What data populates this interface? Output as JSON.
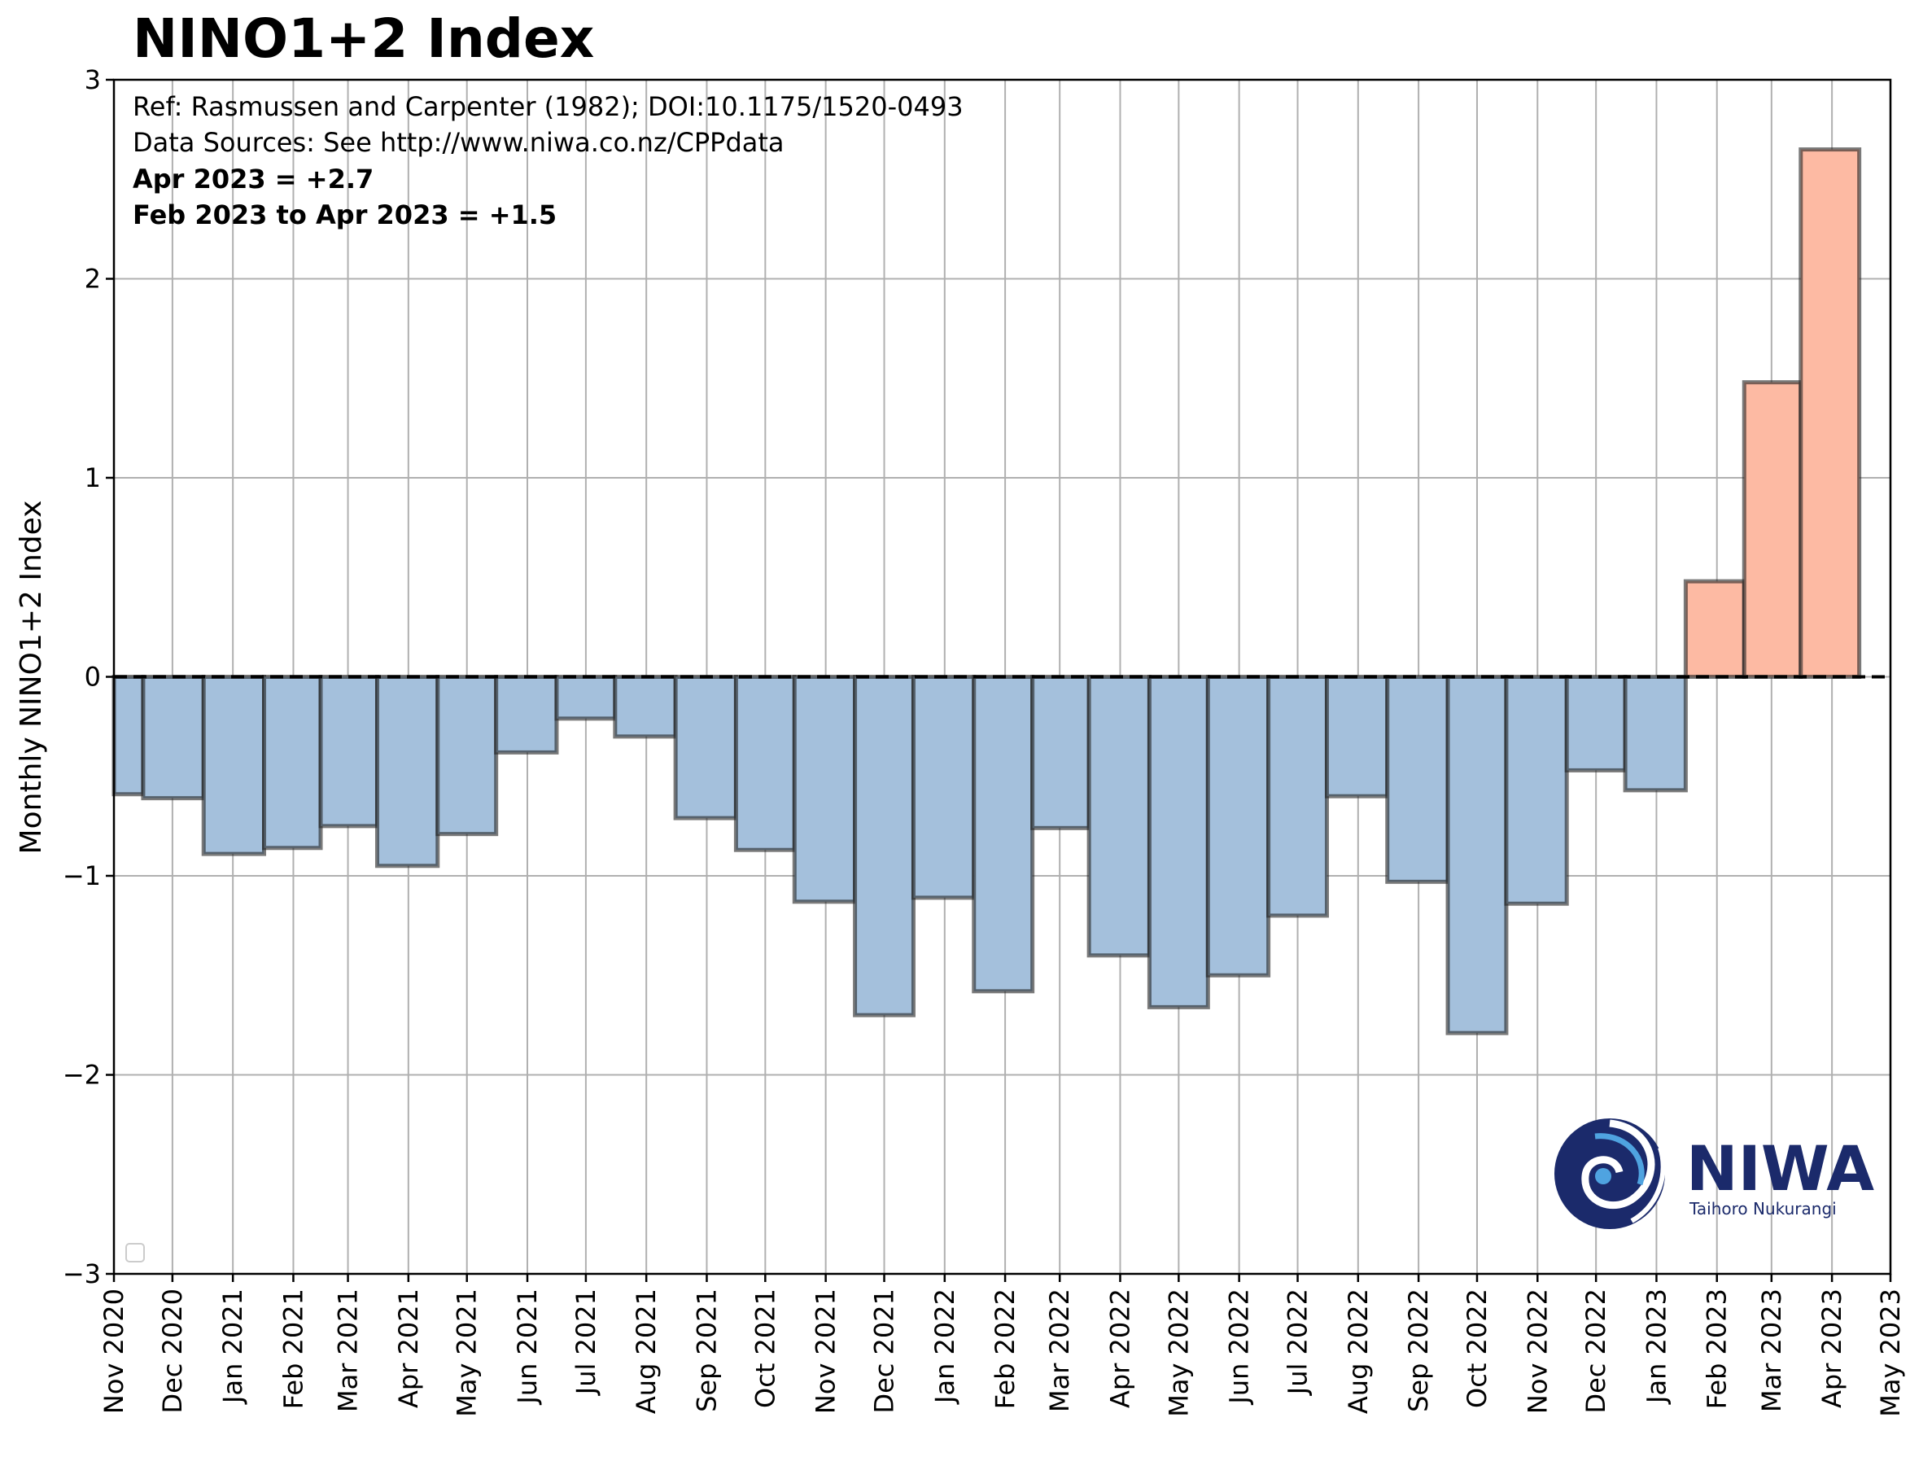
{
  "chart_data": {
    "type": "bar",
    "title": "NINO1+2 Index",
    "ylabel": "Monthly NINO1+2 Index",
    "xlabel": "",
    "ylim": [
      -3,
      3
    ],
    "yticks": [
      -3,
      -2,
      -1,
      0,
      1,
      2,
      3
    ],
    "ytick_labels": [
      "−3",
      "−2",
      "−1",
      "0",
      "1",
      "2",
      "3"
    ],
    "x_start": "2020-11-01",
    "x_end": "2023-05-01",
    "xtick_labels": [
      "Nov 2020",
      "Dec 2020",
      "Jan 2021",
      "Feb 2021",
      "Mar 2021",
      "Apr 2021",
      "May 2021",
      "Jun 2021",
      "Jul 2021",
      "Aug 2021",
      "Sep 2021",
      "Oct 2021",
      "Nov 2021",
      "Dec 2021",
      "Jan 2022",
      "Feb 2022",
      "Mar 2022",
      "Apr 2022",
      "May 2022",
      "Jun 2022",
      "Jul 2022",
      "Aug 2022",
      "Sep 2022",
      "Oct 2022",
      "Nov 2022",
      "Dec 2022",
      "Jan 2023",
      "Feb 2023",
      "Mar 2023",
      "Apr 2023",
      "May 2023"
    ],
    "bars": [
      {
        "start": "2020-11-01",
        "end": "2020-11-16",
        "value": -0.59
      },
      {
        "start": "2020-11-16",
        "end": "2020-12-17",
        "value": -0.61
      },
      {
        "start": "2020-12-17",
        "end": "2021-01-17",
        "value": -0.89
      },
      {
        "start": "2021-01-17",
        "end": "2021-02-15",
        "value": -0.86
      },
      {
        "start": "2021-02-15",
        "end": "2021-03-16",
        "value": -0.75
      },
      {
        "start": "2021-03-16",
        "end": "2021-04-16",
        "value": -0.95
      },
      {
        "start": "2021-04-16",
        "end": "2021-05-16",
        "value": -0.79
      },
      {
        "start": "2021-05-16",
        "end": "2021-06-16",
        "value": -0.38
      },
      {
        "start": "2021-06-16",
        "end": "2021-07-16",
        "value": -0.21
      },
      {
        "start": "2021-07-16",
        "end": "2021-08-16",
        "value": -0.3
      },
      {
        "start": "2021-08-16",
        "end": "2021-09-16",
        "value": -0.71
      },
      {
        "start": "2021-09-16",
        "end": "2021-10-16",
        "value": -0.87
      },
      {
        "start": "2021-10-16",
        "end": "2021-11-16",
        "value": -1.13
      },
      {
        "start": "2021-11-16",
        "end": "2021-12-16",
        "value": -1.7
      },
      {
        "start": "2021-12-16",
        "end": "2022-01-16",
        "value": -1.11
      },
      {
        "start": "2022-01-16",
        "end": "2022-02-15",
        "value": -1.58
      },
      {
        "start": "2022-02-15",
        "end": "2022-03-16",
        "value": -0.76
      },
      {
        "start": "2022-03-16",
        "end": "2022-04-16",
        "value": -1.4
      },
      {
        "start": "2022-04-16",
        "end": "2022-05-16",
        "value": -1.66
      },
      {
        "start": "2022-05-16",
        "end": "2022-06-16",
        "value": -1.5
      },
      {
        "start": "2022-06-16",
        "end": "2022-07-16",
        "value": -1.2
      },
      {
        "start": "2022-07-16",
        "end": "2022-08-16",
        "value": -0.6
      },
      {
        "start": "2022-08-16",
        "end": "2022-09-16",
        "value": -1.03
      },
      {
        "start": "2022-09-16",
        "end": "2022-10-16",
        "value": -1.79
      },
      {
        "start": "2022-10-16",
        "end": "2022-11-16",
        "value": -1.14
      },
      {
        "start": "2022-11-16",
        "end": "2022-12-16",
        "value": -0.47
      },
      {
        "start": "2022-12-16",
        "end": "2023-01-16",
        "value": -0.57
      },
      {
        "start": "2023-01-16",
        "end": "2023-02-15",
        "value": 0.48
      },
      {
        "start": "2023-02-15",
        "end": "2023-03-16",
        "value": 1.48
      },
      {
        "start": "2023-03-16",
        "end": "2023-04-15",
        "value": 2.65
      }
    ],
    "grid": true,
    "zero_line": true,
    "colors": {
      "negative": "#a4c0dc",
      "positive": "#fdbaa3",
      "edge": "#222222"
    },
    "annotations": {
      "ref": "Ref: Rasmussen and Carpenter (1982); DOI:10.1175/1520-0493",
      "sources": "Data Sources: See http://www.niwa.co.nz/CPPdata",
      "latest": "Apr 2023 = +2.7",
      "average": "Feb 2023 to Apr 2023 = +1.5"
    }
  },
  "logo": {
    "name": "NIWA",
    "tagline": "Taihoro Nukurangi",
    "color": "#1b2a6b"
  }
}
